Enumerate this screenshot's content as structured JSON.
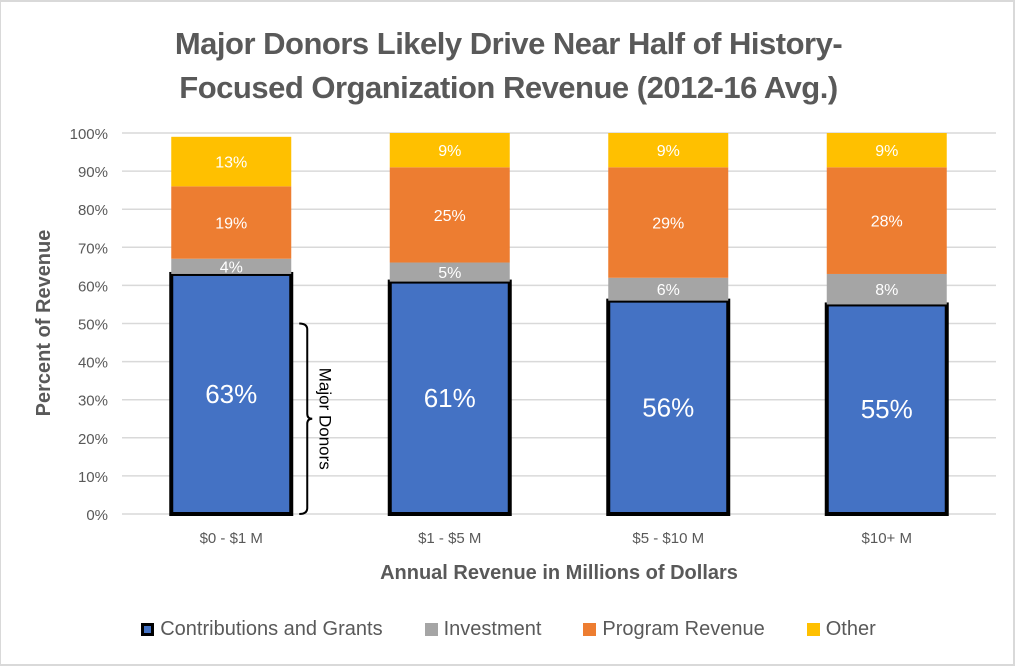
{
  "chart_data": {
    "type": "bar",
    "stacked": true,
    "title_lines": [
      "Major Donors Likely Drive Near Half of History-",
      "Focused Organization Revenue (2012-16 Avg.)"
    ],
    "xlabel": "Annual Revenue in Millions of Dollars",
    "ylabel": "Percent of Revenue",
    "categories": [
      "$0 - $1 M",
      "$1 - $5 M",
      "$5 - $10 M",
      "$10+ M"
    ],
    "ylim": [
      0,
      100
    ],
    "yticks": [
      0,
      10,
      20,
      30,
      40,
      50,
      60,
      70,
      80,
      90,
      100
    ],
    "ytick_labels": [
      "0%",
      "10%",
      "20%",
      "30%",
      "40%",
      "50%",
      "60%",
      "70%",
      "80%",
      "90%",
      "100%"
    ],
    "grid": true,
    "legend_position": "bottom",
    "series": [
      {
        "name": "Contributions and Grants",
        "color": "#4472c4",
        "outlined": true,
        "values": [
          63,
          61,
          56,
          55
        ],
        "labels": [
          "63%",
          "61%",
          "56%",
          "55%"
        ]
      },
      {
        "name": "Investment",
        "color": "#a5a5a5",
        "values": [
          4,
          5,
          6,
          8
        ],
        "labels": [
          "4%",
          "5%",
          "6%",
          "8%"
        ]
      },
      {
        "name": "Program Revenue",
        "color": "#ed7d31",
        "values": [
          19,
          25,
          29,
          28
        ],
        "labels": [
          "19%",
          "25%",
          "29%",
          "28%"
        ]
      },
      {
        "name": "Other",
        "color": "#ffc000",
        "values": [
          13,
          9,
          9,
          9
        ],
        "labels": [
          "13%",
          "9%",
          "9%",
          "9%"
        ]
      }
    ],
    "annotations": [
      {
        "text": "Major Donors",
        "type": "brace",
        "category": "$0 - $1 M",
        "range": [
          0,
          50
        ]
      }
    ]
  },
  "colors": {
    "title": "#595959",
    "axis_text": "#595959",
    "grid": "#d9d9d9",
    "label_text": "#ffffff"
  }
}
